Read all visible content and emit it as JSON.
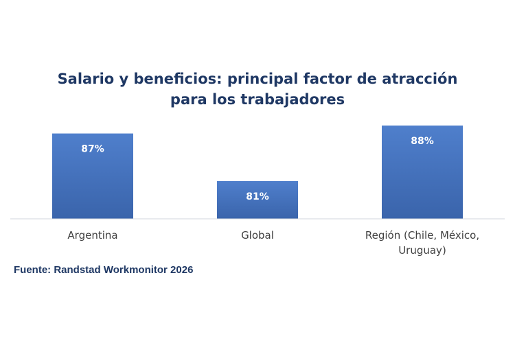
{
  "chart_data": {
    "type": "bar",
    "title": "Salario y beneficios: principal factor de atracción para los trabajadores",
    "categories": [
      "Argentina",
      "Global",
      "Región (Chile, México, Uruguay)"
    ],
    "values": [
      87,
      81,
      88
    ],
    "value_labels": [
      "87%",
      "81%",
      "88%"
    ],
    "value_unit": "%",
    "xlabel": "",
    "ylabel": "",
    "ylim": [
      80,
      88
    ],
    "grid": false,
    "legend": "none",
    "bar_color_top": "#4f7fcc",
    "bar_color_bottom": "#3a64ab"
  },
  "source": "Fuente: Randstad Workmonitor 2026"
}
